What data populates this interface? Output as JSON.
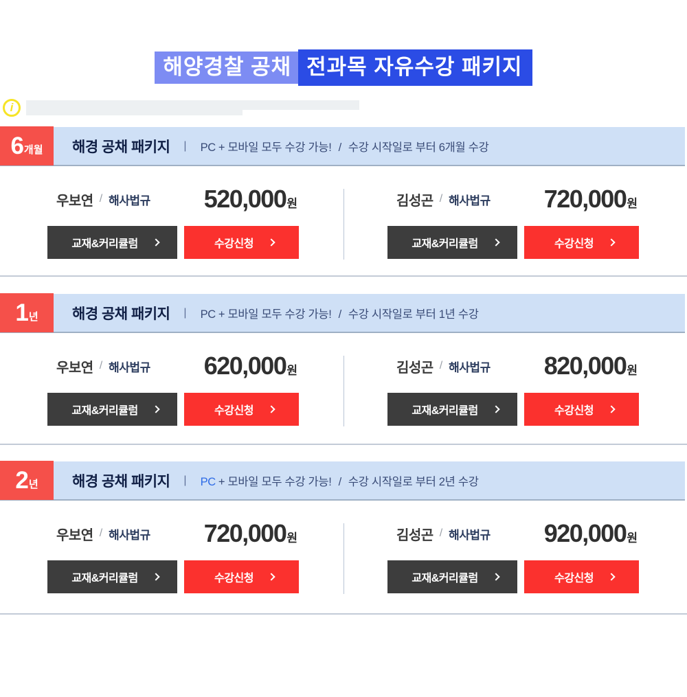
{
  "page_title": {
    "highlight_light": "해양경찰 공채",
    "highlight_dark": "전과목 자유수강 패키지"
  },
  "notice": {
    "info_icon_glyph": "i"
  },
  "shared": {
    "curriculum_button": "교재&커리큘럼",
    "register_button": "수강신청",
    "separator": "|",
    "availability_pc": "PC",
    "availability_rest": "+ 모바일 모두 수강 가능!",
    "slash": "/",
    "instructor_slash": "/",
    "won_suffix": "원"
  },
  "colors": {
    "badge_red": "#f5504a",
    "register_red": "#fb312e",
    "curriculum_dark": "#3d3d3d",
    "header_bg": "#cfe0f6",
    "header_text": "#101f45",
    "title_light_bg": "#7d8cf3",
    "title_dark_bg": "#2b4ce5",
    "pc_blue": "#2e6be6",
    "info_icon_yellow": "#f6e426"
  },
  "sections": [
    {
      "badge_value": "6",
      "badge_unit": "개월",
      "title": "해경 공채 패키지",
      "duration": "수강 시작일로 부터 6개월 수강",
      "offers": [
        {
          "instructor": "우보연",
          "subject": "해사법규",
          "price": "520,000"
        },
        {
          "instructor": "김성곤",
          "subject": "해사법규",
          "price": "720,000"
        }
      ]
    },
    {
      "badge_value": "1",
      "badge_unit": "년",
      "title": "해경 공채 패키지",
      "duration": "수강 시작일로 부터 1년 수강",
      "offers": [
        {
          "instructor": "우보연",
          "subject": "해사법규",
          "price": "620,000"
        },
        {
          "instructor": "김성곤",
          "subject": "해사법규",
          "price": "820,000"
        }
      ]
    },
    {
      "badge_value": "2",
      "badge_unit": "년",
      "title": "해경 공채 패키지",
      "duration": "수강 시작일로 부터 2년 수강",
      "offers": [
        {
          "instructor": "우보연",
          "subject": "해사법규",
          "price": "720,000"
        },
        {
          "instructor": "김성곤",
          "subject": "해사법규",
          "price": "920,000"
        }
      ]
    }
  ]
}
